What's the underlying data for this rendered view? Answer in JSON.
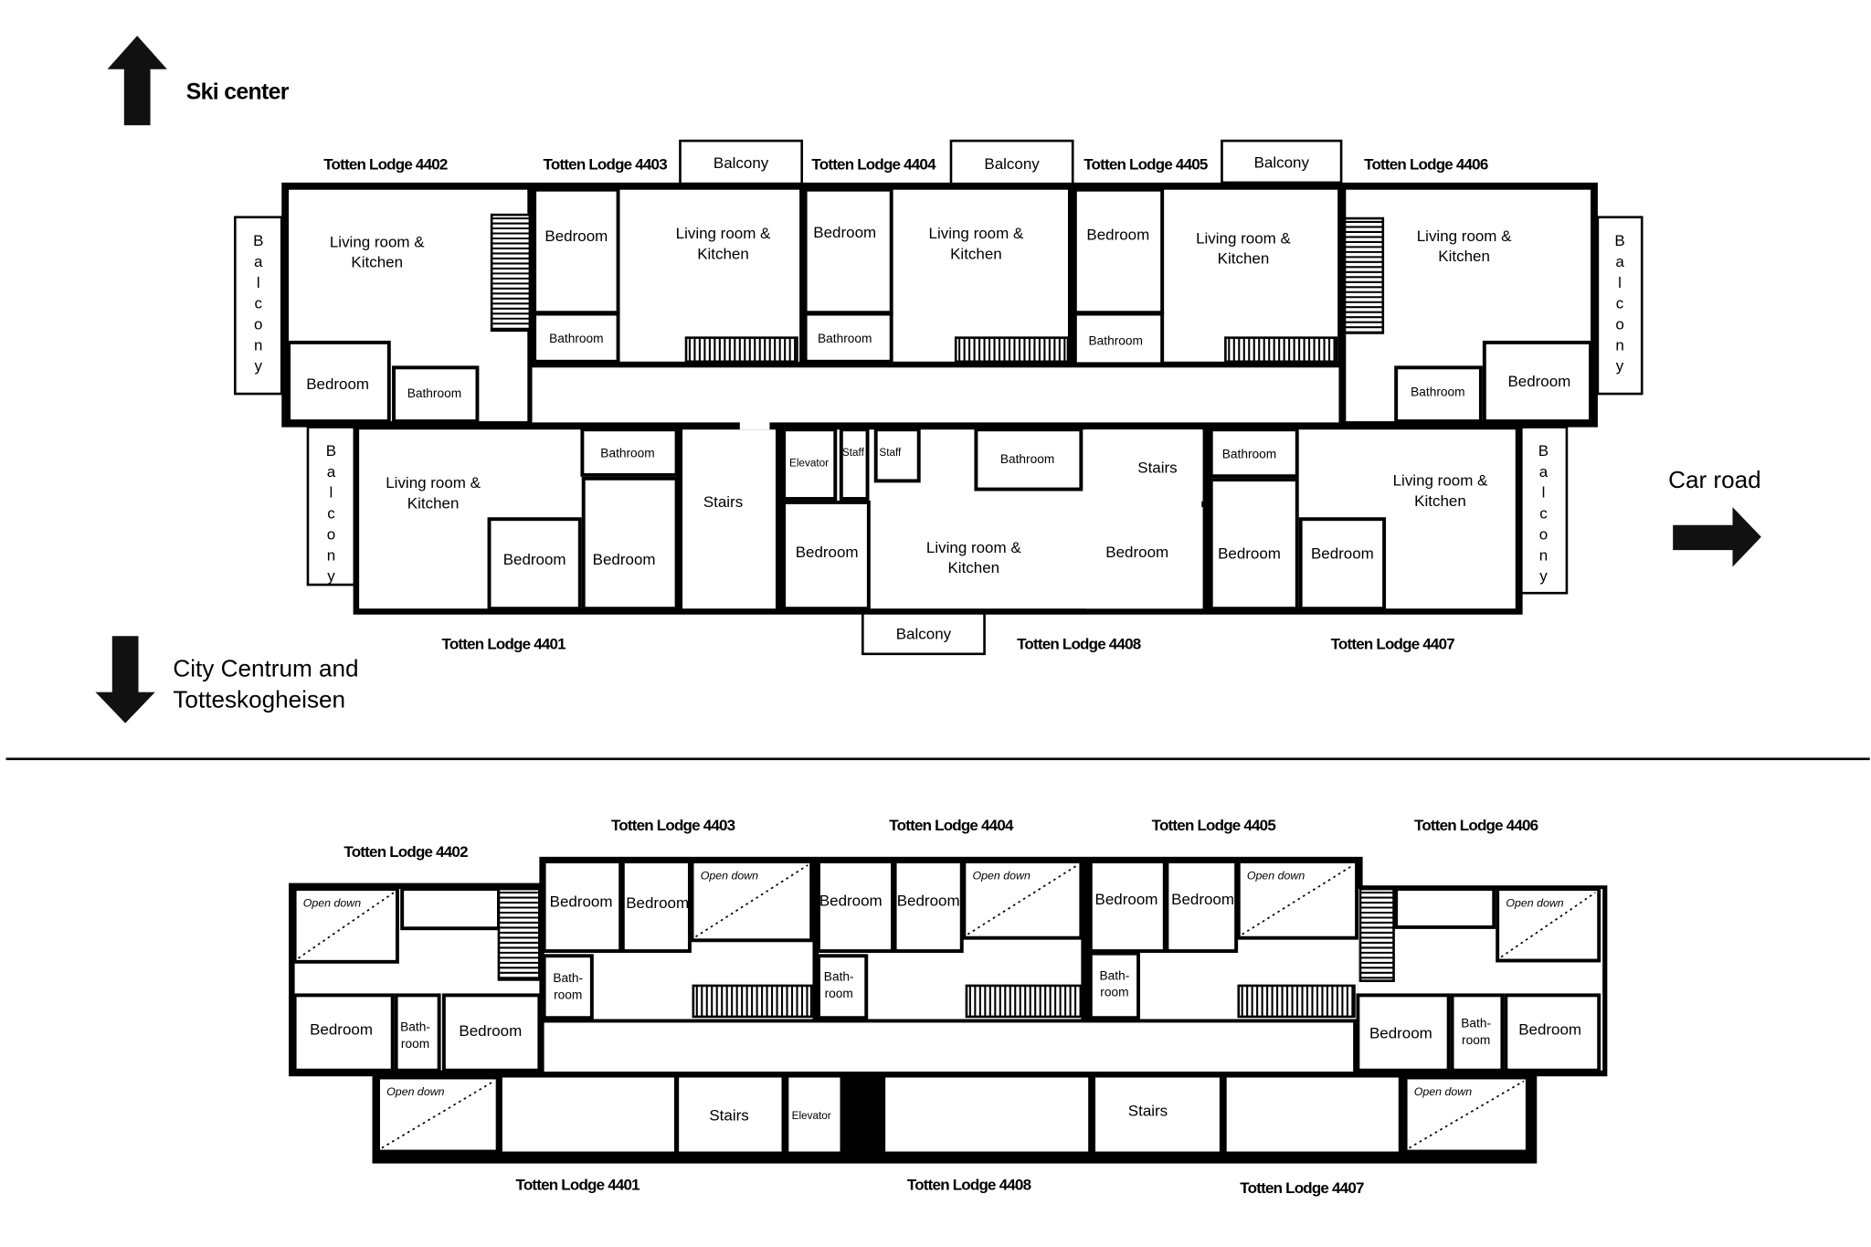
{
  "directions": {
    "north": "Ski center",
    "east": "Car road",
    "south": [
      "City Centrum and",
      "Totteskogheisen"
    ]
  },
  "labels": {
    "living_kitchen": [
      "Living room &",
      "Kitchen"
    ],
    "bedroom": "Bedroom",
    "bathroom": "Bathroom",
    "bathroom_split": [
      "Bath-",
      "room"
    ],
    "balcony": "Balcony",
    "balcony_vertical": [
      "B",
      "a",
      "l",
      "c",
      "o",
      "n",
      "y"
    ],
    "stairs": "Stairs",
    "elevator": "Elevator",
    "staff": "Staff",
    "open_down": "Open down"
  },
  "main_floor": {
    "lodge_labels": [
      "Totten Lodge 4402",
      "Totten Lodge 4403",
      "Totten Lodge 4404",
      "Totten Lodge 4405",
      "Totten Lodge 4406",
      "Totten Lodge 4401",
      "Totten Lodge 4408",
      "Totten Lodge 4407"
    ]
  },
  "lower_floor": {
    "lodge_labels": [
      "Totten Lodge 4402",
      "Totten Lodge 4403",
      "Totten Lodge 4404",
      "Totten Lodge 4405",
      "Totten Lodge 4406",
      "Totten Lodge 4401",
      "Totten Lodge 4408",
      "Totten Lodge 4407"
    ]
  },
  "colors": {
    "wall": "#000000",
    "floor": "#ffffff"
  }
}
